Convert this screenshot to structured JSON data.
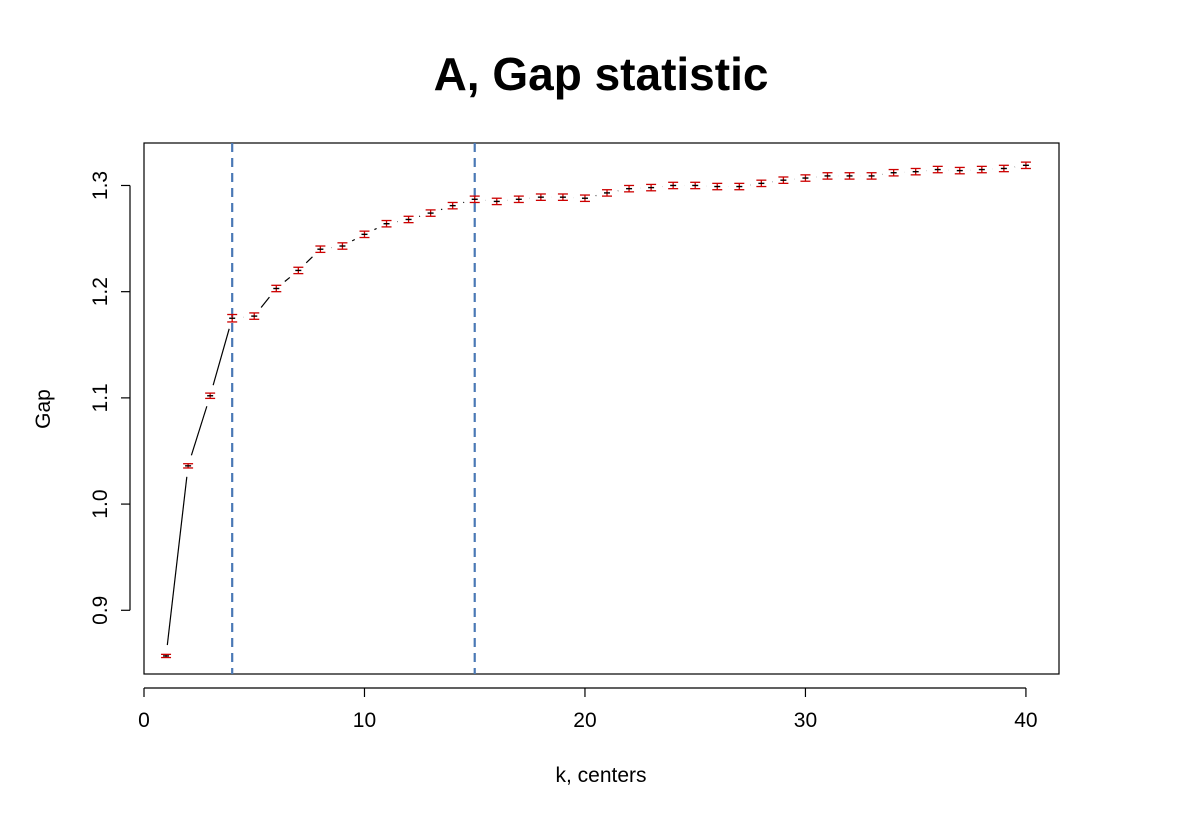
{
  "chart_data": {
    "type": "scatter",
    "title": "A, Gap statistic",
    "xlabel": "k, centers",
    "ylabel": "Gap",
    "xlim": [
      0,
      41.5
    ],
    "ylim": [
      0.84,
      1.34
    ],
    "xticks": [
      0,
      10,
      20,
      30,
      40
    ],
    "yticks": [
      0.9,
      1.0,
      1.1,
      1.2,
      1.3
    ],
    "ytick_labels": [
      "0.9",
      "1.0",
      "1.1",
      "1.2",
      "1.3"
    ],
    "grid": false,
    "legend": "none",
    "colors": {
      "line": "#000000",
      "errorbar": "#cc0000",
      "vline": "#4a78b5",
      "frame": "#000000"
    },
    "vlines": [
      4,
      15
    ],
    "series": [
      {
        "x": [
          1,
          2,
          3,
          4,
          5,
          6,
          7,
          8,
          9,
          10,
          11,
          12,
          13,
          14,
          15,
          16,
          17,
          18,
          19,
          20,
          21,
          22,
          23,
          24,
          25,
          26,
          27,
          28,
          29,
          30,
          31,
          32,
          33,
          34,
          35,
          36,
          37,
          38,
          39,
          40
        ],
        "values": [
          0.857,
          1.036,
          1.102,
          1.175,
          1.177,
          1.203,
          1.22,
          1.24,
          1.243,
          1.254,
          1.264,
          1.268,
          1.274,
          1.281,
          1.287,
          1.285,
          1.287,
          1.289,
          1.289,
          1.288,
          1.293,
          1.297,
          1.298,
          1.3,
          1.3,
          1.299,
          1.299,
          1.302,
          1.305,
          1.307,
          1.309,
          1.309,
          1.309,
          1.312,
          1.313,
          1.315,
          1.314,
          1.315,
          1.316,
          1.319
        ],
        "se": [
          0.0015,
          0.002,
          0.0025,
          0.0035,
          0.003,
          0.003,
          0.003,
          0.003,
          0.003,
          0.003,
          0.003,
          0.003,
          0.003,
          0.003,
          0.003,
          0.003,
          0.003,
          0.003,
          0.003,
          0.003,
          0.003,
          0.003,
          0.003,
          0.003,
          0.003,
          0.003,
          0.003,
          0.003,
          0.003,
          0.003,
          0.003,
          0.003,
          0.003,
          0.003,
          0.003,
          0.003,
          0.003,
          0.003,
          0.003,
          0.003
        ]
      }
    ]
  }
}
